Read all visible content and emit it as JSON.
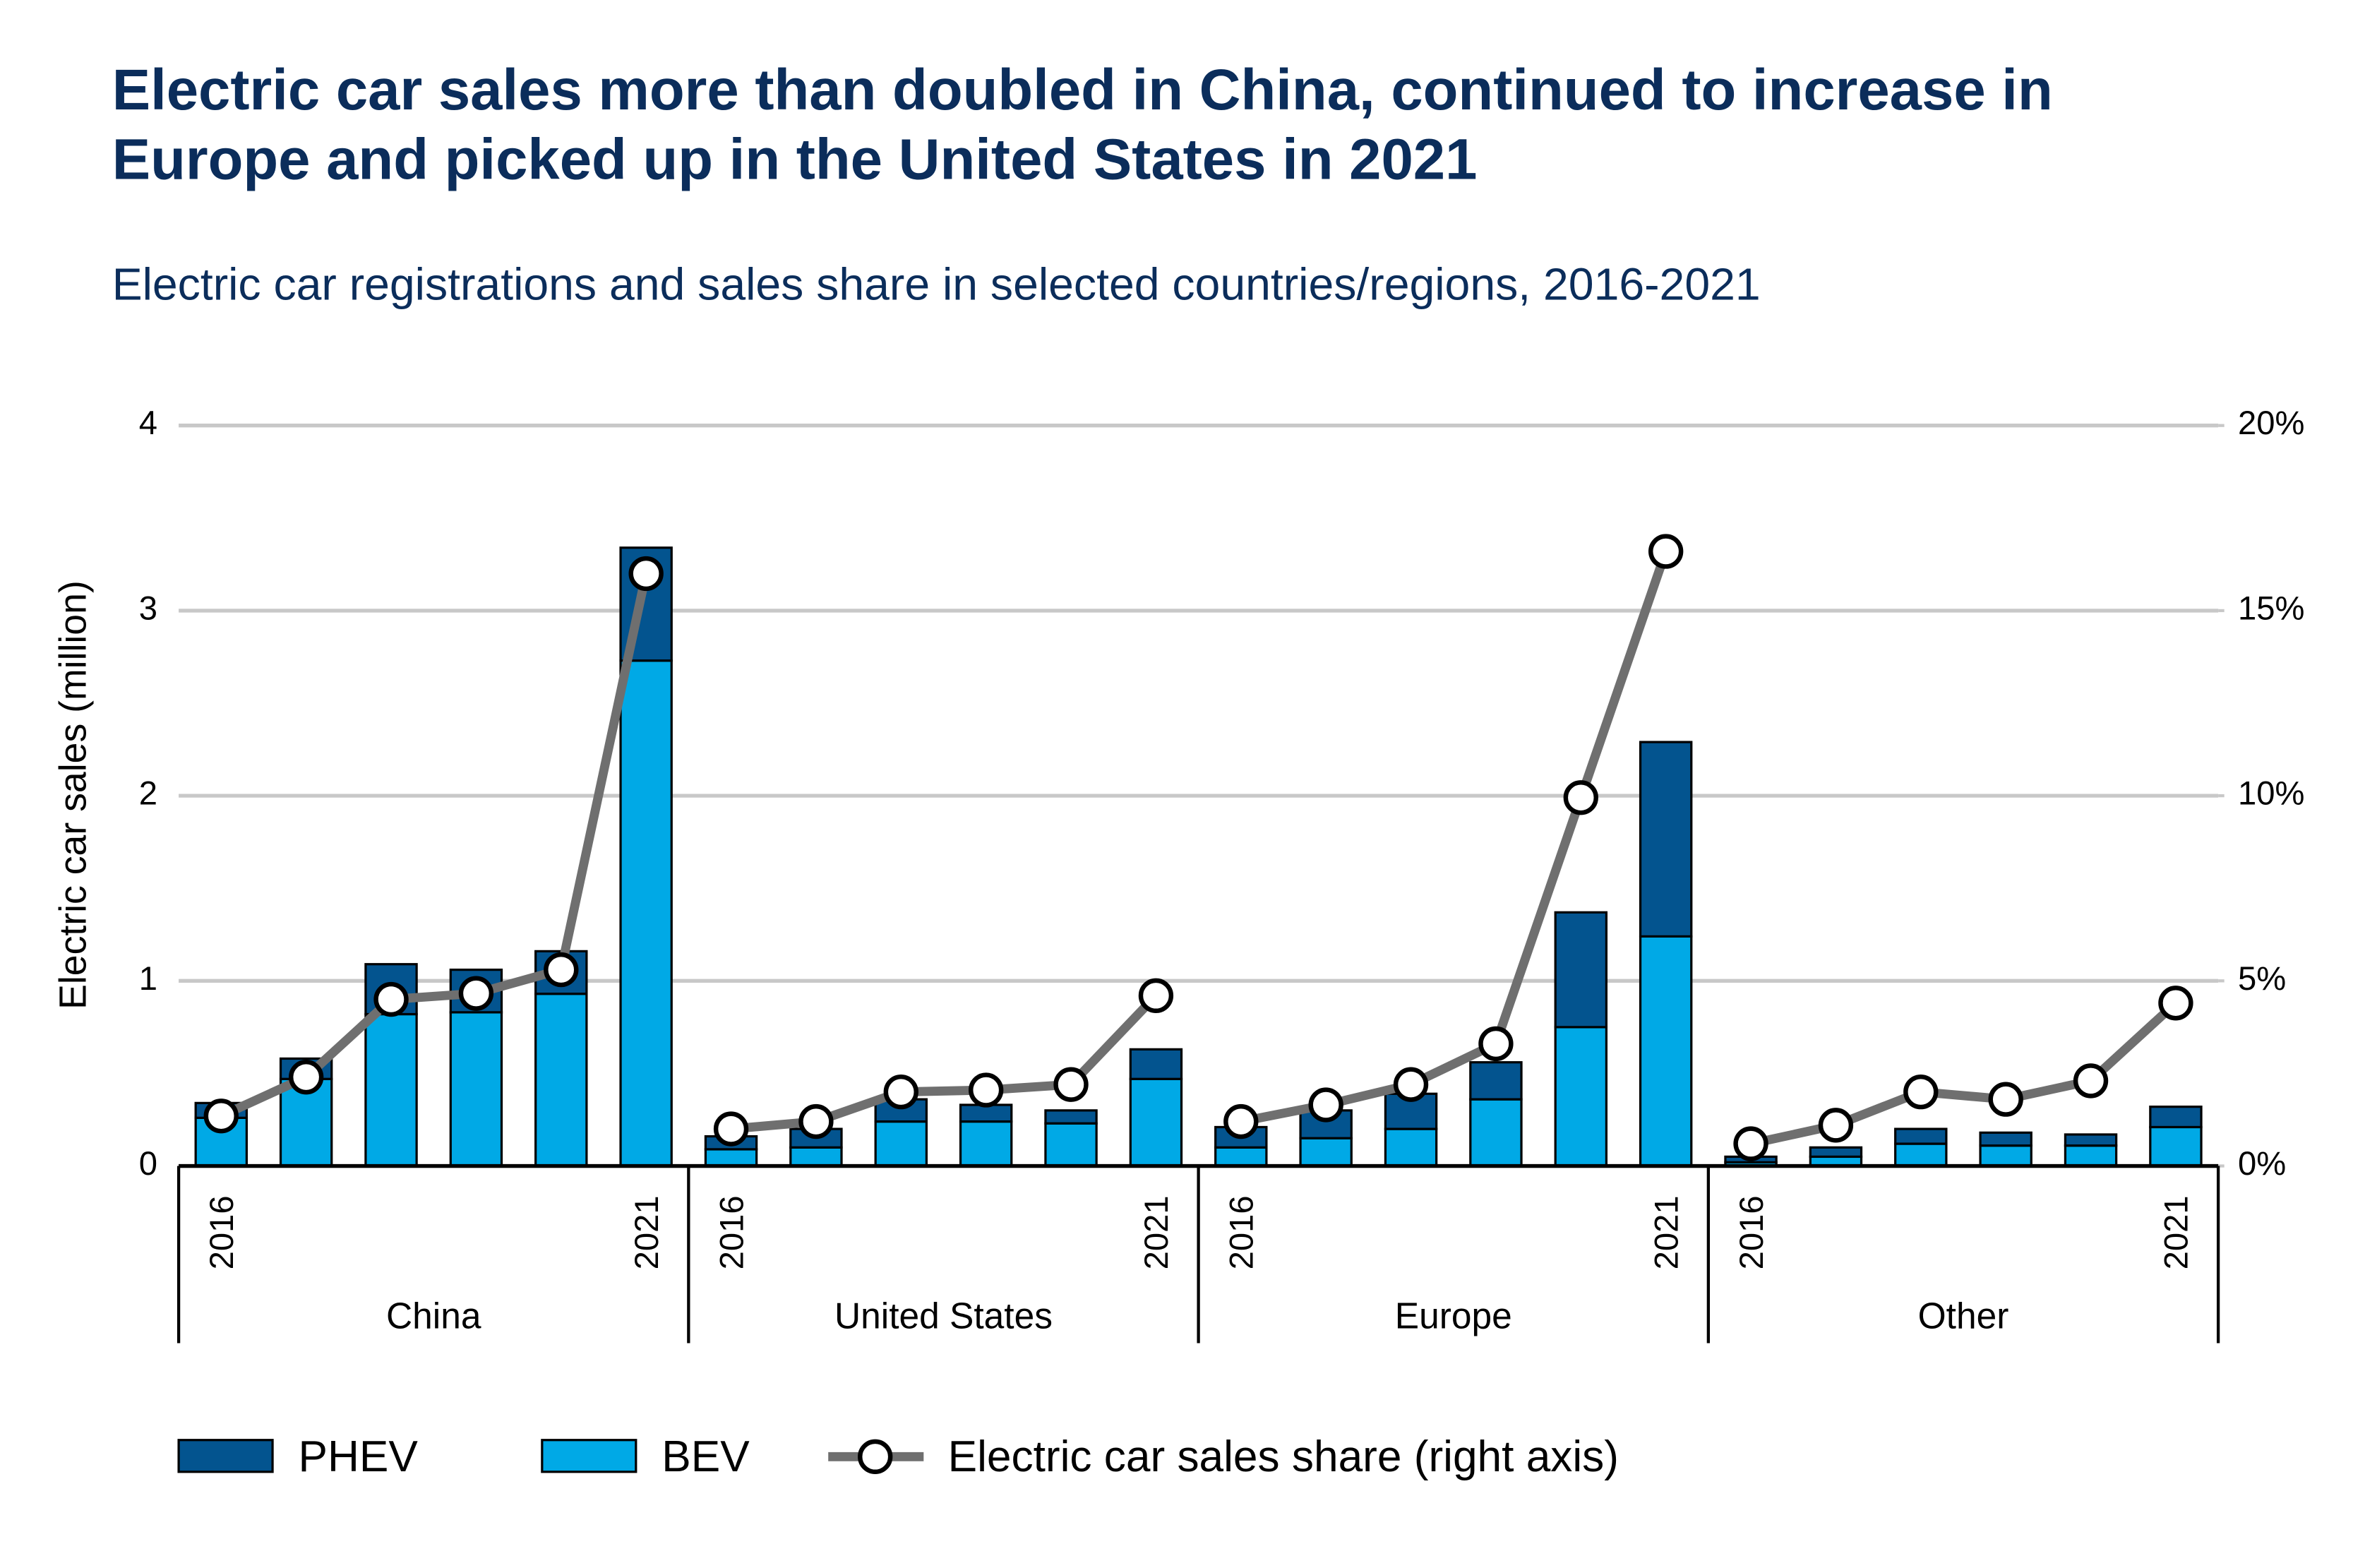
{
  "chart_data": {
    "type": "bar",
    "title": "Electric car sales more than doubled in China, continued to increase in Europe and picked up in the United States in 2021",
    "subtitle": "Electric car registrations and sales share in selected countries/regions, 2016-2021",
    "y_label": "Electric car sales (million)",
    "stacked": true,
    "groups": [
      "China",
      "United States",
      "Europe",
      "Other"
    ],
    "categories": [
      "2016",
      null,
      null,
      null,
      null,
      "2021",
      "2016",
      null,
      null,
      null,
      null,
      "2021",
      "2016",
      null,
      null,
      null,
      null,
      "2021",
      "2016",
      null,
      null,
      null,
      null,
      "2021"
    ],
    "series": [
      {
        "name": "PHEV",
        "type": "bar",
        "color": "#03548f",
        "values": [
          0.08,
          0.11,
          0.27,
          0.23,
          0.23,
          0.61,
          0.07,
          0.1,
          0.12,
          0.09,
          0.07,
          0.16,
          0.11,
          0.15,
          0.19,
          0.2,
          0.62,
          1.05,
          0.03,
          0.05,
          0.08,
          0.07,
          0.06,
          0.11
        ]
      },
      {
        "name": "BEV",
        "type": "bar",
        "color": "#00a9e6",
        "values": [
          0.26,
          0.47,
          0.82,
          0.83,
          0.93,
          2.73,
          0.09,
          0.1,
          0.24,
          0.24,
          0.23,
          0.47,
          0.1,
          0.15,
          0.2,
          0.36,
          0.75,
          1.24,
          0.02,
          0.05,
          0.12,
          0.11,
          0.11,
          0.21
        ]
      },
      {
        "name": "Electric car sales share (right axis)",
        "type": "line",
        "axis": "y2",
        "color": "#6f6f6f",
        "values": [
          1.35,
          2.4,
          4.5,
          4.66,
          5.3,
          16.0,
          1.0,
          1.2,
          2.0,
          2.05,
          2.2,
          4.6,
          1.2,
          1.65,
          2.2,
          3.3,
          9.95,
          16.6,
          0.6,
          1.1,
          2.0,
          1.8,
          2.3,
          4.4
        ]
      }
    ],
    "ylim": [
      0,
      4
    ],
    "yticks": [
      0,
      1,
      2,
      3,
      4
    ],
    "y2lim": [
      0,
      20
    ],
    "y2ticks": [
      {
        "value": 0,
        "label": "0%"
      },
      {
        "value": 5,
        "label": "5%"
      },
      {
        "value": 10,
        "label": "10%"
      },
      {
        "value": 15,
        "label": "15%"
      },
      {
        "value": 20,
        "label": "20%"
      }
    ],
    "grid": true,
    "legend": "bottom"
  }
}
